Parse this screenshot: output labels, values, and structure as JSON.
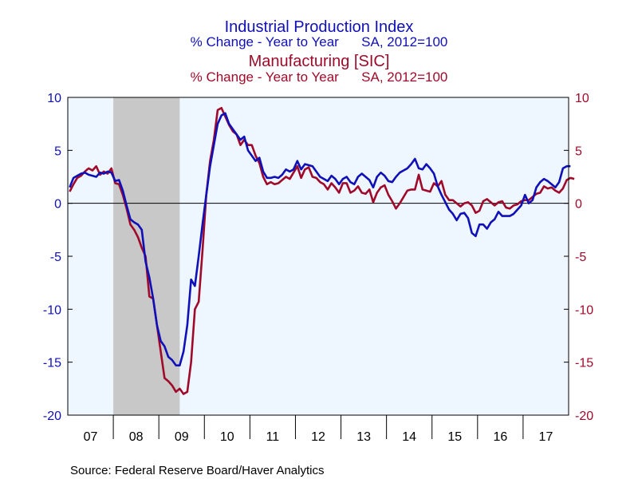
{
  "titles": {
    "line1": "Industrial Production Index",
    "line2": "% Change - Year to Year      SA, 2012=100",
    "line3": "Manufacturing [SIC]",
    "line4": "% Change - Year to Year      SA, 2012=100"
  },
  "source": "Source:  Federal Reserve Board/Haver Analytics",
  "colors": {
    "series1": "#1010B8",
    "series2": "#A00A2A",
    "plot_bg": "#EEF6FF",
    "recession": "#C8C8C8"
  },
  "chart_data": {
    "type": "line",
    "x_start": "2007-01",
    "x_end": "2017-12",
    "x_ticks": [
      "07",
      "08",
      "09",
      "10",
      "11",
      "12",
      "13",
      "14",
      "15",
      "16",
      "17"
    ],
    "ylim": [
      -20,
      10
    ],
    "y_ticks_left": [
      "10",
      "5",
      "0",
      "-5",
      "-10",
      "-15",
      "-20"
    ],
    "y_ticks_right": [
      "10",
      "5",
      "0",
      "-5",
      "-10",
      "-15",
      "-20"
    ],
    "zero_line": true,
    "recession": [
      "2008-01",
      "2009-06"
    ],
    "series": [
      {
        "name": "Industrial Production Index",
        "values": [
          1.5,
          2.4,
          2.6,
          2.8,
          2.9,
          2.7,
          2.6,
          2.5,
          2.9,
          2.8,
          3.0,
          2.9,
          2.1,
          2.2,
          1.2,
          -0.2,
          -1.5,
          -1.8,
          -2.0,
          -2.5,
          -5.5,
          -7.0,
          -9.0,
          -11.5,
          -13.0,
          -13.5,
          -14.5,
          -14.8,
          -15.3,
          -15.3,
          -14.0,
          -11.5,
          -7.2,
          -7.8,
          -5.0,
          -2.0,
          0.8,
          3.5,
          5.5,
          7.5,
          8.3,
          8.5,
          7.5,
          7.0,
          6.5,
          6.0,
          6.3,
          5.0,
          4.5,
          4.0,
          4.3,
          3.0,
          2.4,
          2.4,
          2.5,
          2.4,
          2.7,
          3.2,
          3.0,
          3.2,
          4.0,
          3.2,
          3.7,
          3.6,
          3.5,
          3.0,
          2.5,
          2.3,
          2.1,
          2.6,
          2.3,
          1.8,
          2.3,
          2.5,
          2.0,
          1.8,
          2.5,
          2.8,
          2.5,
          2.2,
          1.5,
          2.5,
          2.9,
          2.6,
          2.1,
          2.0,
          2.5,
          2.9,
          3.1,
          3.3,
          3.7,
          4.2,
          3.3,
          3.2,
          3.7,
          3.3,
          2.8,
          1.6,
          0.8,
          0.1,
          -0.6,
          -1.0,
          -1.6,
          -1.0,
          -0.9,
          -1.4,
          -2.8,
          -3.1,
          -2.0,
          -2.0,
          -2.4,
          -1.8,
          -1.5,
          -0.8,
          -1.2,
          -1.2,
          -1.2,
          -1.0,
          -0.6,
          -0.2,
          0.8,
          0.0,
          0.3,
          1.5,
          2.0,
          2.3,
          2.1,
          1.8,
          1.5,
          2.0,
          3.3,
          3.5,
          3.5
        ],
        "note": "monthly values Jan 2007 - Dec 2017"
      },
      {
        "name": "Manufacturing [SIC]",
        "values": [
          1.1,
          1.8,
          2.4,
          2.6,
          3.0,
          3.3,
          3.1,
          3.5,
          2.7,
          3.0,
          2.8,
          3.3,
          1.9,
          1.8,
          0.8,
          -0.5,
          -2.0,
          -2.5,
          -3.2,
          -4.2,
          -5.0,
          -8.8,
          -9.0,
          -11.5,
          -14.0,
          -16.5,
          -16.8,
          -17.2,
          -17.8,
          -17.5,
          -18.0,
          -17.8,
          -15.0,
          -10.0,
          -9.3,
          -4.5,
          0.8,
          4.0,
          6.0,
          8.8,
          9.0,
          8.2,
          7.4,
          6.8,
          6.5,
          5.5,
          6.0,
          5.5,
          5.5,
          4.5,
          3.8,
          2.5,
          1.8,
          2.0,
          1.8,
          1.9,
          2.2,
          2.5,
          2.3,
          2.9,
          3.5,
          2.4,
          3.2,
          3.4,
          2.5,
          2.4,
          2.0,
          1.8,
          1.3,
          1.9,
          1.5,
          1.0,
          1.9,
          1.9,
          1.0,
          1.2,
          1.6,
          1.0,
          0.9,
          1.3,
          0.1,
          1.0,
          1.5,
          1.7,
          0.8,
          0.2,
          -0.5,
          0.0,
          0.6,
          1.2,
          1.3,
          1.3,
          2.7,
          1.3,
          1.2,
          1.1,
          1.9,
          1.6,
          2.1,
          0.8,
          0.3,
          0.3,
          0.0,
          -0.3,
          0.0,
          0.1,
          -0.2,
          -0.9,
          -0.7,
          0.2,
          0.4,
          0.1,
          -0.2,
          0.1,
          0.2,
          -0.4,
          -0.5,
          -0.2,
          -0.1,
          0.2,
          0.3,
          0.3,
          0.6,
          0.9,
          1.0,
          1.6,
          1.4,
          1.5,
          1.2,
          1.0,
          1.4,
          2.2,
          2.4,
          2.3
        ],
        "note": "monthly values Jan 2007 - Dec 2017"
      }
    ]
  }
}
